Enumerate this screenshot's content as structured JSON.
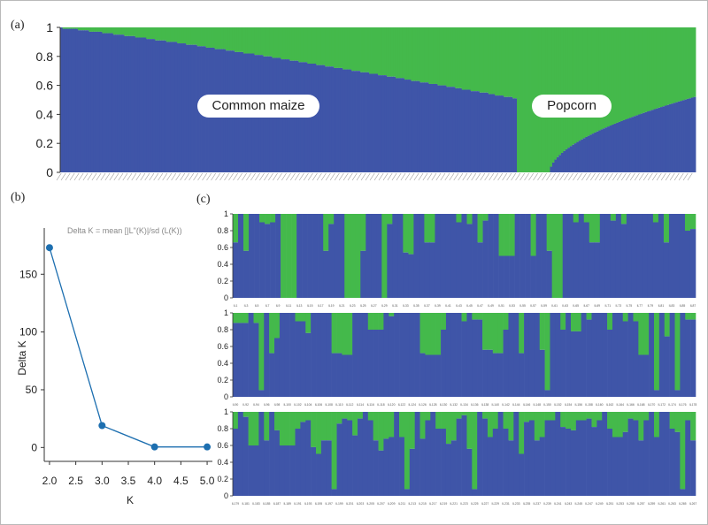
{
  "panels": {
    "a": "(a)",
    "b": "(b)",
    "c": "(c)"
  },
  "colors": {
    "blue": "#3f55a8",
    "green": "#44b94b",
    "line": "#1d6fb0",
    "axis": "#333333"
  },
  "chart_data": [
    {
      "id": "a",
      "type": "bar",
      "stacked": true,
      "title": "",
      "ylim": [
        0,
        1
      ],
      "yticks": [
        0,
        0.2,
        0.4,
        0.6,
        0.8,
        1
      ],
      "ytick_labels": [
        "0",
        "0.2",
        "0.4",
        "0.6",
        "0.8",
        "1"
      ],
      "groups": [
        {
          "label": "Common maize",
          "n_samples": 207,
          "blue_start": 0.995,
          "blue_end": 0.51
        },
        {
          "label": "Popcorn",
          "n_samples": 81,
          "blue_start": 0.0,
          "blue_end": 0.52
        }
      ],
      "series": [
        {
          "name": "",
          "color": "#3f55a8"
        },
        {
          "name": "",
          "color": "#44b94b"
        }
      ]
    },
    {
      "id": "b",
      "type": "line",
      "annotation": "Delta K = mean [|L\"(K)|/sd  (L(K))",
      "xlabel": "K",
      "ylabel": "Delta K",
      "x": [
        2.0,
        3.0,
        4.0,
        5.0
      ],
      "y": [
        173,
        19,
        0.5,
        0.5
      ],
      "xlim": [
        1.9,
        5.1
      ],
      "ylim": [
        -12,
        190
      ],
      "xticks": [
        2.0,
        2.5,
        3.0,
        3.5,
        4.0,
        4.5,
        5.0
      ],
      "xtick_labels": [
        "2.0",
        "2.5",
        "3.0",
        "3.5",
        "4.0",
        "4.5",
        "5.0"
      ],
      "yticks": [
        0,
        50,
        100,
        150
      ],
      "ytick_labels": [
        "0",
        "50",
        "100",
        "150"
      ]
    },
    {
      "id": "c",
      "type": "bar",
      "stacked": true,
      "ylim": [
        0,
        1
      ],
      "yticks": [
        0,
        0.2,
        0.4,
        0.6,
        0.8,
        1
      ],
      "ytick_labels": [
        "0",
        "0.2",
        "0.4",
        "0.6",
        "0.8",
        "1"
      ],
      "rows": [
        {
          "labels_start": 1,
          "blue_fraction": [
            0.66,
            1,
            0.56,
            1,
            1,
            0.9,
            0.88,
            0.9,
            1,
            0,
            0,
            0,
            1,
            1,
            1,
            1,
            1,
            0.56,
            0.88,
            1,
            1,
            0,
            0,
            0,
            0.56,
            1,
            1,
            1,
            0,
            0.88,
            1,
            1,
            0.54,
            0.52,
            1,
            1,
            0.66,
            0.66,
            1,
            1,
            1,
            1,
            0.9,
            1,
            0.88,
            1,
            0.66,
            0.92,
            1,
            1,
            0.5,
            0.5,
            0.5,
            1,
            1,
            1,
            0.5,
            1,
            1,
            0.56,
            0,
            0,
            1,
            1,
            0.9,
            1,
            0.9,
            0.66,
            0.66,
            1,
            1,
            0.92,
            1,
            0.88,
            1,
            1,
            1,
            1,
            1,
            0.9,
            1,
            0.66,
            1,
            1,
            1,
            0.8,
            0.82
          ]
        },
        {
          "labels_start": 90,
          "blue_fraction": [
            0.88,
            0.88,
            0.88,
            1,
            0.88,
            0.08,
            1,
            0.52,
            0.7,
            1,
            1,
            1,
            0.9,
            0.9,
            0.76,
            1,
            1,
            1,
            1,
            0.52,
            0.52,
            0.5,
            0.5,
            1,
            1,
            1,
            0.8,
            0.8,
            0.8,
            1,
            0.96,
            1,
            1,
            1,
            1,
            1,
            0.52,
            0.5,
            0.5,
            0.5,
            0.8,
            1,
            1,
            1,
            0.9,
            1,
            0.92,
            0.92,
            0.56,
            0.56,
            0.52,
            0.52,
            0.8,
            1,
            1,
            0.52,
            1,
            1,
            1,
            0.56,
            0.08,
            1,
            1,
            0.8,
            1,
            0.78,
            0.78,
            1,
            0.92,
            1,
            1,
            1,
            0.8,
            1,
            1,
            0.9,
            1,
            0.9,
            0.5,
            0.5,
            1,
            0.08,
            1,
            0.72,
            1,
            0.08,
            1,
            0.92,
            0.92
          ]
        },
        {
          "labels_start": 179,
          "blue_fraction": [
            0.8,
            1,
            0.94,
            0.6,
            0.6,
            1,
            0.66,
            1,
            0.78,
            0.6,
            0.6,
            0.6,
            0.8,
            0.88,
            0.9,
            0.58,
            0.5,
            0.66,
            0.66,
            0.08,
            0.86,
            0.92,
            0.9,
            0.72,
            0.92,
            1,
            0.9,
            0.66,
            0.54,
            0.68,
            0.7,
            1,
            0.7,
            0.08,
            0.56,
            1,
            0.68,
            0.9,
            1,
            0.8,
            0.8,
            0.62,
            0.66,
            0.92,
            0.96,
            0.56,
            0.08,
            1,
            0.92,
            0.7,
            0.8,
            1,
            0.8,
            0.66,
            1,
            0.5,
            0.88,
            0.9,
            0.66,
            0.7,
            0.9,
            0.9,
            1,
            0.82,
            0.8,
            0.78,
            0.9,
            0.9,
            0.92,
            0.82,
            0.9,
            1,
            0.8,
            0.7,
            0.7,
            0.76,
            0.92,
            0.9,
            0.66,
            0.9,
            1,
            0.7,
            1,
            1,
            0.8,
            0.76,
            0.08,
            0.9,
            0.66
          ]
        }
      ]
    }
  ]
}
